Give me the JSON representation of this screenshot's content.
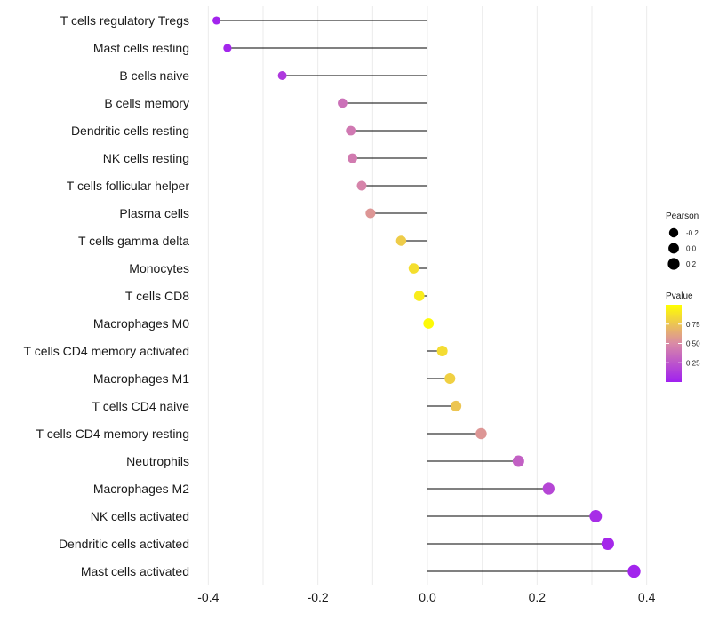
{
  "chart_data": {
    "type": "lollipop",
    "orientation": "horizontal",
    "xlim": [
      -0.42,
      0.42
    ],
    "x_ticks": [
      -0.4,
      -0.2,
      0.0,
      0.2,
      0.4
    ],
    "x_tick_labels": [
      "-0.4",
      "-0.2",
      "0.0",
      "0.2",
      "0.4"
    ],
    "grid": true,
    "categories": [
      "T cells regulatory  Tregs",
      "Mast cells resting",
      "B cells naive",
      "B cells memory",
      "Dendritic cells resting",
      "NK cells resting",
      "T cells follicular helper",
      "Plasma cells",
      "T cells gamma delta",
      "Monocytes",
      "T cells CD8",
      "Macrophages M0",
      "T cells CD4 memory activated",
      "Macrophages M1",
      "T cells CD4 naive",
      "T cells CD4 memory resting",
      "Neutrophils",
      "Macrophages M2",
      "NK cells activated",
      "Dendritic cells activated",
      "Mast cells activated"
    ],
    "pearson": [
      -0.385,
      -0.365,
      -0.265,
      -0.155,
      -0.14,
      -0.137,
      -0.12,
      -0.104,
      -0.048,
      -0.025,
      -0.015,
      0.002,
      0.027,
      0.041,
      0.052,
      0.098,
      0.166,
      0.221,
      0.307,
      0.329,
      0.377
    ],
    "pvalue": [
      0.02,
      0.03,
      0.12,
      0.38,
      0.42,
      0.43,
      0.47,
      0.55,
      0.78,
      0.86,
      0.92,
      0.98,
      0.85,
      0.8,
      0.75,
      0.55,
      0.3,
      0.18,
      0.06,
      0.04,
      0.02
    ],
    "size_legend": {
      "title": "Pearson",
      "values": [
        -0.2,
        0.0,
        0.2
      ],
      "labels": [
        "-0.2",
        "0.0",
        "0.2"
      ]
    },
    "color_legend": {
      "title": "Pvalue",
      "range": [
        0.0,
        1.0
      ],
      "ticks": [
        0.75,
        0.5,
        0.25
      ],
      "tick_labels": [
        "0.75",
        "0.50",
        "0.25"
      ],
      "color_low": "#a020f0",
      "color_mid": "#d98aa6",
      "color_high": "#ffff00"
    },
    "colors": {
      "stem": "#000000",
      "grid": "#ebebeb",
      "text": "#1a1a1a"
    }
  }
}
